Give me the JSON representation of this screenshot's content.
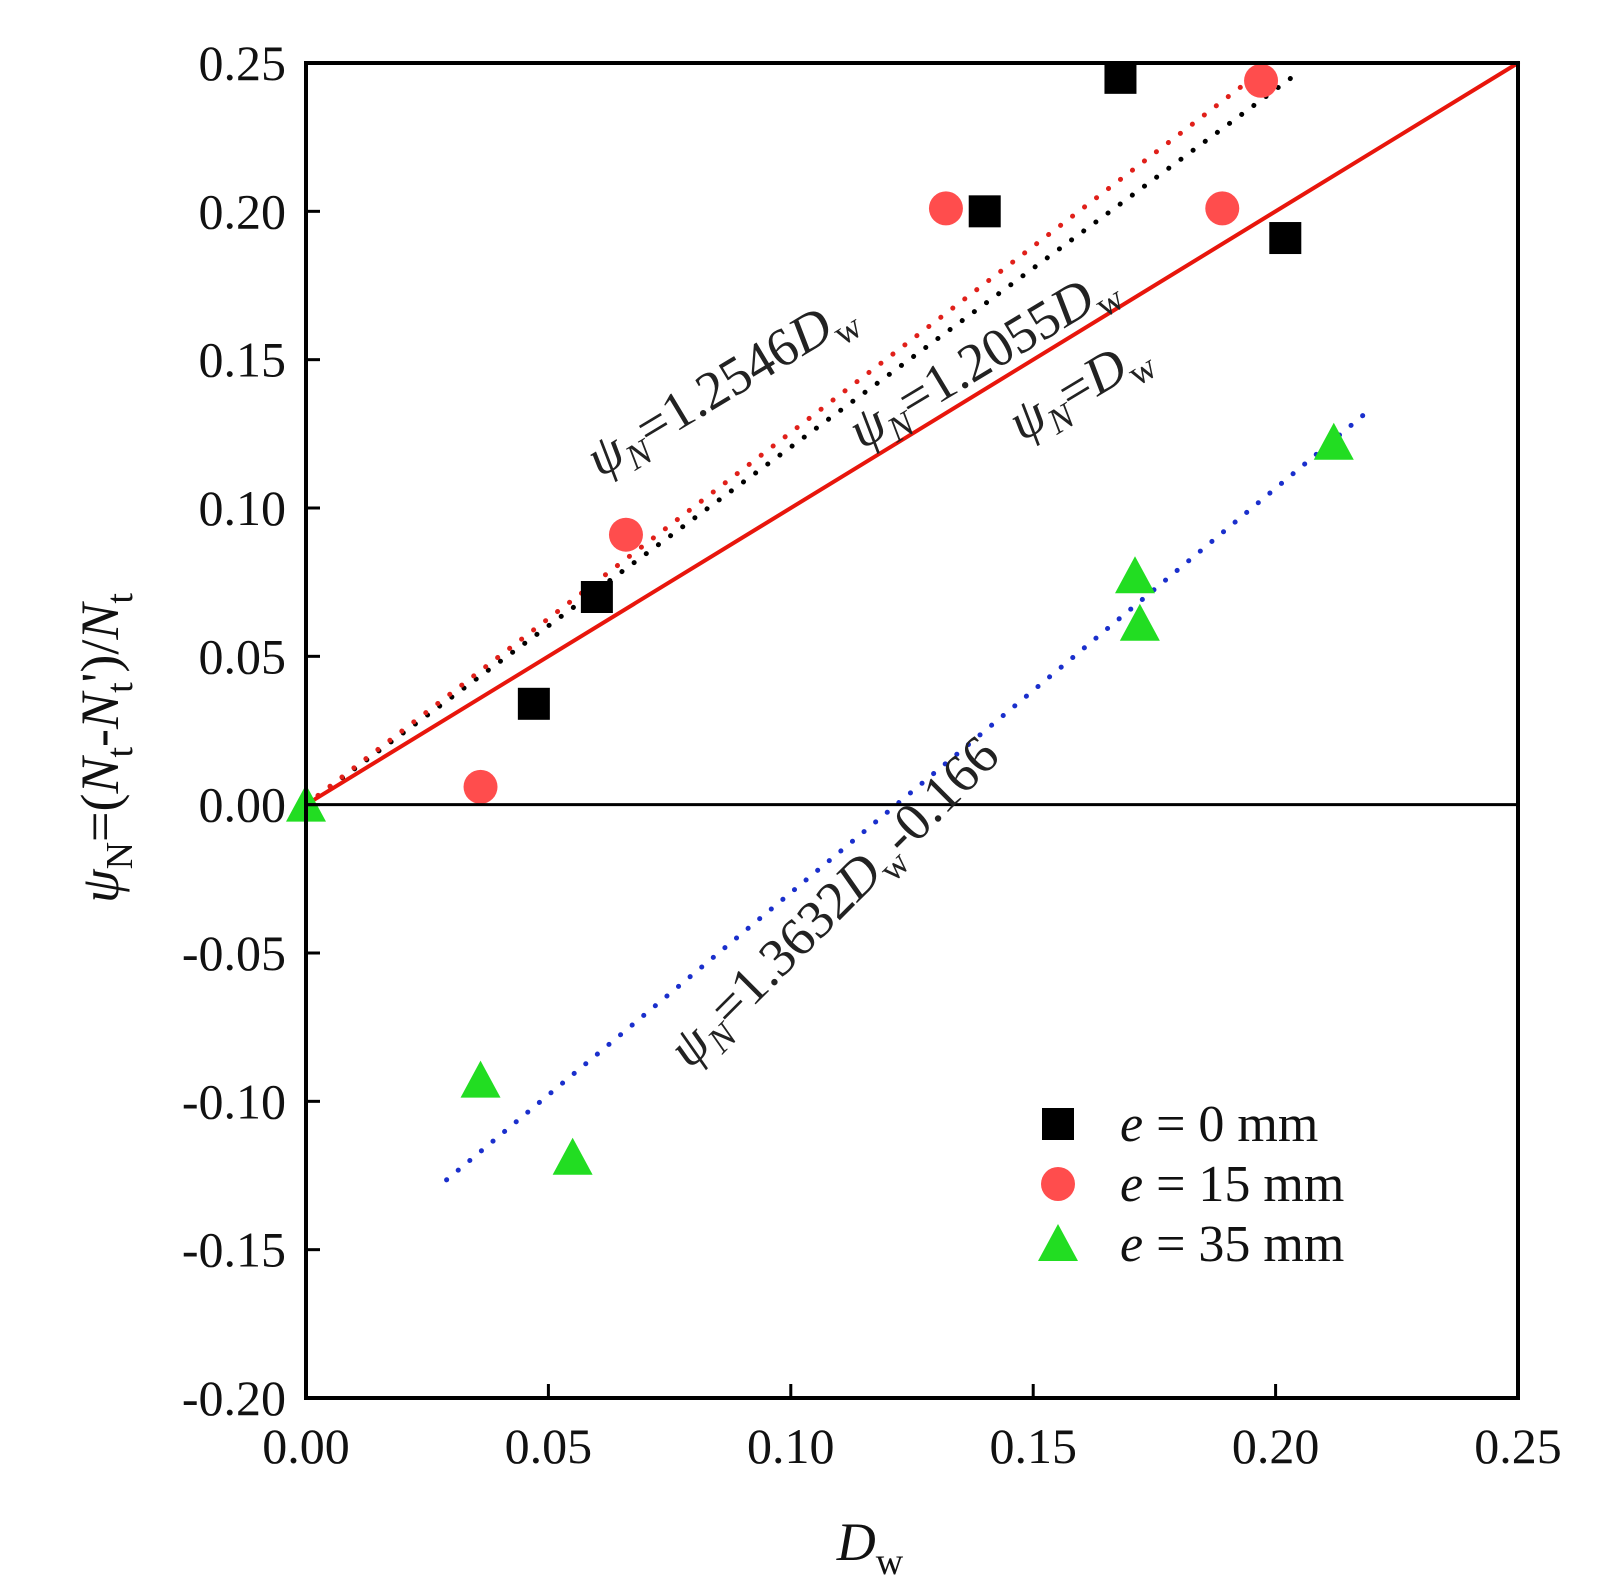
{
  "chart_data": {
    "type": "scatter",
    "title": "",
    "xlabel": {
      "main": "D",
      "sub": "w"
    },
    "ylabel": {
      "prefix": "ψ",
      "sub_n": "N",
      "eq": "=(",
      "n1": "N",
      "sub_t1": "t",
      "dash": "-",
      "n2": "N",
      "sub_t2": "t",
      "close": "')/",
      "n3": "N",
      "sub_t3": "t"
    },
    "xlim": [
      0,
      0.25
    ],
    "ylim": [
      -0.2,
      0.25
    ],
    "xticks": [
      "0.00",
      "0.05",
      "0.10",
      "0.15",
      "0.20",
      "0.25"
    ],
    "yticks": [
      "-0.20",
      "-0.15",
      "-0.10",
      "-0.05",
      "0.00",
      "0.05",
      "0.10",
      "0.15",
      "0.20",
      "0.25"
    ],
    "series": [
      {
        "name": "e = 0 mm",
        "label_var": "e",
        "label_rest": " = 0 mm",
        "marker": "square",
        "color": "#000000",
        "x": [
          0.047,
          0.06,
          0.14,
          0.168,
          0.202
        ],
        "y": [
          0.034,
          0.07,
          0.2,
          0.245,
          0.191
        ]
      },
      {
        "name": "e = 15 mm",
        "label_var": "e",
        "label_rest": " = 15 mm",
        "marker": "circle",
        "color": "#ff4d4d",
        "x": [
          0.036,
          0.066,
          0.132,
          0.189,
          0.197
        ],
        "y": [
          0.006,
          0.091,
          0.201,
          0.201,
          0.244
        ]
      },
      {
        "name": "e = 35 mm",
        "label_var": "e",
        "label_rest": " = 35 mm",
        "marker": "triangle",
        "color": "#22dd22",
        "x": [
          0.0,
          0.036,
          0.055,
          0.171,
          0.172,
          0.212
        ],
        "y": [
          0.0,
          -0.093,
          -0.119,
          0.077,
          0.061,
          0.122
        ]
      }
    ],
    "fit_lines": [
      {
        "name": "fit-e0",
        "slope": 1.2055,
        "intercept": 0,
        "x_range": [
          0,
          0.205
        ],
        "color": "#000000",
        "style": "dotted"
      },
      {
        "name": "fit-e15",
        "slope": 1.2546,
        "intercept": 0,
        "x_range": [
          0,
          0.197
        ],
        "color": "#e0201a",
        "style": "dotted"
      },
      {
        "name": "fit-e35",
        "slope": 1.3632,
        "intercept": -0.166,
        "x_range": [
          0.029,
          0.219
        ],
        "color": "#1a2fcc",
        "style": "dotted"
      },
      {
        "name": "reference-line",
        "slope": 1,
        "intercept": 0,
        "x_range": [
          0,
          0.25
        ],
        "color": "#e8160c",
        "style": "solid"
      }
    ],
    "annotations": [
      {
        "id": "eq-1.2546",
        "psi": "ψ",
        "sub": "N",
        "body": "=1.2546",
        "var": "D",
        "var_sub": "w"
      },
      {
        "id": "eq-1.2055",
        "psi": "ψ",
        "sub": "N",
        "body": "=1.2055",
        "var": "D",
        "var_sub": "w"
      },
      {
        "id": "eq-1.0",
        "psi": "ψ",
        "sub": "N",
        "body": "=",
        "var": "D",
        "var_sub": "w"
      },
      {
        "id": "eq-1.3632",
        "psi": "ψ",
        "sub": "N",
        "body": "=1.3632",
        "var": "D",
        "var_sub": "w",
        "tail": "-0.166"
      }
    ],
    "legend_position": "bottom-right"
  }
}
